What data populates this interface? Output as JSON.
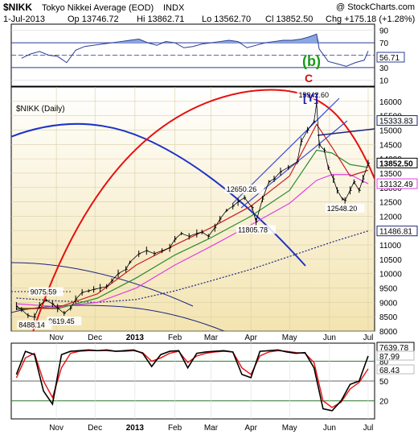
{
  "header": {
    "symbol": "$NIKK",
    "name": "Tokyo Nikkei Average (EOD)",
    "exchange": "INDX",
    "source": "@ StockCharts.com",
    "date": "1-Jul-2013",
    "open": "Op 13746.72",
    "high": "Hi 13862.71",
    "low": "Lo 13562.70",
    "close": "Cl 13852.50",
    "change": "Chg +175.18 (+1.28%)"
  },
  "chart_data": [
    {
      "type": "line",
      "panel": "rsi",
      "ylim": [
        0,
        100
      ],
      "y_ticks": [
        10,
        30,
        50,
        70,
        90
      ],
      "levels": [
        30,
        70
      ],
      "last_value": "56.71",
      "colors": {
        "line": "#2b3c9a",
        "fill": "#8aa8e0"
      },
      "x": [
        "2012-10-05",
        "2012-10-12",
        "2012-10-19",
        "2012-10-26",
        "2012-11-02",
        "2012-11-09",
        "2012-11-16",
        "2012-11-23",
        "2012-11-30",
        "2012-12-07",
        "2012-12-14",
        "2012-12-21",
        "2012-12-28",
        "2013-01-04",
        "2013-01-11",
        "2013-01-18",
        "2013-01-25",
        "2013-02-01",
        "2013-02-08",
        "2013-02-15",
        "2013-02-22",
        "2013-03-01",
        "2013-03-08",
        "2013-03-15",
        "2013-03-22",
        "2013-03-29",
        "2013-04-05",
        "2013-04-12",
        "2013-04-19",
        "2013-04-26",
        "2013-05-03",
        "2013-05-10",
        "2013-05-17",
        "2013-05-22",
        "2013-05-24",
        "2013-05-31",
        "2013-06-07",
        "2013-06-14",
        "2013-06-21",
        "2013-06-28",
        "2013-07-01"
      ],
      "values": [
        45,
        52,
        56,
        50,
        48,
        38,
        58,
        64,
        66,
        68,
        70,
        72,
        74,
        76,
        70,
        66,
        72,
        70,
        62,
        64,
        68,
        70,
        72,
        74,
        72,
        62,
        66,
        70,
        72,
        74,
        74,
        76,
        80,
        84,
        60,
        40,
        36,
        32,
        38,
        42,
        56.71
      ]
    },
    {
      "type": "line",
      "panel": "price",
      "title": "$NIKK (Daily)",
      "ylim": [
        8000,
        16500
      ],
      "y_ticks": [
        8000,
        8500,
        9000,
        9500,
        10000,
        10500,
        11000,
        11500,
        12000,
        12500,
        13000,
        13500,
        14000,
        14500,
        15000,
        15500,
        16000
      ],
      "x_ticks": [
        "Nov",
        "Dec",
        "2013",
        "Feb",
        "Mar",
        "Apr",
        "May",
        "Jun",
        "Jul"
      ],
      "series": [
        {
          "key": "price",
          "color": "#000000",
          "x": [
            "2012-10-01",
            "2012-10-05",
            "2012-10-10",
            "2012-10-15",
            "2012-10-19",
            "2012-10-24",
            "2012-10-29",
            "2012-11-02",
            "2012-11-07",
            "2012-11-12",
            "2012-11-16",
            "2012-11-21",
            "2012-11-26",
            "2012-11-30",
            "2012-12-05",
            "2012-12-10",
            "2012-12-14",
            "2012-12-19",
            "2012-12-25",
            "2012-12-28",
            "2013-01-04",
            "2013-01-10",
            "2013-01-16",
            "2013-01-22",
            "2013-01-28",
            "2013-02-01",
            "2013-02-06",
            "2013-02-12",
            "2013-02-18",
            "2013-02-22",
            "2013-02-27",
            "2013-03-04",
            "2013-03-08",
            "2013-03-13",
            "2013-03-18",
            "2013-03-22",
            "2013-03-27",
            "2013-04-02",
            "2013-04-05",
            "2013-04-10",
            "2013-04-15",
            "2013-04-19",
            "2013-04-24",
            "2013-04-30",
            "2013-05-07",
            "2013-05-10",
            "2013-05-15",
            "2013-05-20",
            "2013-05-22",
            "2013-05-24",
            "2013-05-28",
            "2013-05-31",
            "2013-06-04",
            "2013-06-07",
            "2013-06-11",
            "2013-06-13",
            "2013-06-17",
            "2013-06-20",
            "2013-06-24",
            "2013-06-27",
            "2013-07-01"
          ],
          "values": [
            8870,
            8750,
            8540,
            8488.14,
            8900,
            9075.59,
            8950,
            8800,
            8619.45,
            8800,
            9100,
            9350,
            9400,
            9450,
            9500,
            9550,
            9750,
            10000,
            10150,
            10395,
            10690,
            10800,
            10700,
            10800,
            10900,
            11200,
            11400,
            11300,
            11400,
            11450,
            11300,
            11600,
            11900,
            12200,
            12350,
            12500,
            12650.26,
            12300,
            11805.78,
            12600,
            13200,
            13300,
            13550,
            13700,
            13900,
            14600,
            15000,
            15300,
            15942.6,
            14500,
            14300,
            13700,
            13300,
            12900,
            12600,
            12548.2,
            12900,
            13200,
            12900,
            13300,
            13852.5
          ]
        },
        {
          "key": "ema_fast",
          "color": "#cc2020",
          "x": [
            "2012-10-01",
            "2012-11-02",
            "2012-12-03",
            "2013-01-02",
            "2013-02-01",
            "2013-03-01",
            "2013-04-01",
            "2013-05-01",
            "2013-05-22",
            "2013-06-03",
            "2013-06-17",
            "2013-07-01"
          ],
          "values": [
            8750,
            8820,
            9300,
            10300,
            11000,
            11600,
            12350,
            13400,
            15200,
            14400,
            13400,
            13600
          ]
        },
        {
          "key": "ema_mid",
          "color": "#2e8a2e",
          "x": [
            "2012-10-01",
            "2012-11-02",
            "2012-12-03",
            "2013-01-02",
            "2013-02-01",
            "2013-03-01",
            "2013-04-01",
            "2013-05-01",
            "2013-05-22",
            "2013-06-03",
            "2013-06-17",
            "2013-07-01"
          ],
          "values": [
            8800,
            8780,
            9150,
            9850,
            10650,
            11250,
            12000,
            12900,
            14300,
            14200,
            13800,
            13700
          ]
        },
        {
          "key": "sma_50",
          "color": "#e040e0",
          "x": [
            "2012-10-01",
            "2012-11-02",
            "2012-12-03",
            "2013-01-02",
            "2013-02-01",
            "2013-03-01",
            "2013-04-01",
            "2013-05-01",
            "2013-05-22",
            "2013-06-03",
            "2013-06-17",
            "2013-07-01"
          ],
          "values": [
            8950,
            8850,
            9000,
            9500,
            10300,
            10950,
            11700,
            12450,
            13250,
            13450,
            13450,
            13132.49
          ]
        },
        {
          "key": "sma_200",
          "color": "#1a237e",
          "dashed": true,
          "x": [
            "2012-10-01",
            "2012-11-02",
            "2012-12-03",
            "2013-01-02",
            "2013-02-01",
            "2013-03-01",
            "2013-04-01",
            "2013-05-01",
            "2013-06-03",
            "2013-07-01"
          ],
          "values": [
            9150,
            9050,
            9000,
            9100,
            9400,
            9750,
            10150,
            10600,
            11100,
            11486.81
          ]
        }
      ],
      "right_labels": [
        {
          "text": "15333.83",
          "value": 15333.83,
          "color": "#1a237e"
        },
        {
          "text": "13852.50",
          "value": 13852.5,
          "color": "#000000",
          "bold": true
        },
        {
          "text": "13132.49",
          "value": 13132.49,
          "color": "#e040e0"
        },
        {
          "text": "11486.81",
          "value": 11486.81,
          "color": "#1a237e"
        }
      ],
      "annotations": [
        {
          "text": "15942.60",
          "x": "2013-05-22",
          "value": 15942.6,
          "position": "above"
        },
        {
          "text": "12650.26",
          "x": "2013-03-27",
          "value": 12650.26,
          "position": "above"
        },
        {
          "text": "11805.78",
          "x": "2013-04-05",
          "value": 11805.78,
          "position": "below"
        },
        {
          "text": "12548.20",
          "x": "2013-06-13",
          "value": 12548.2,
          "position": "below"
        },
        {
          "text": "9075.59",
          "x": "2012-10-24",
          "value": 9075.59,
          "position": "above"
        },
        {
          "text": "8619.45",
          "x": "2012-11-07",
          "value": 8619.45,
          "position": "below"
        },
        {
          "text": "8488.14",
          "x": "2012-10-15",
          "value": 8488.14,
          "position": "below"
        }
      ],
      "wave_labels": [
        {
          "text": "(b)",
          "color": "#1a9a1a"
        },
        {
          "text": "C",
          "color": "#d01010"
        },
        {
          "text": "[Y]",
          "color": "#1a1aa0"
        }
      ],
      "colors": {
        "blue_arc": "#1f33c8",
        "red_arc": "#e81010",
        "channel": "#3b4bd8",
        "background": "#f3e4b0"
      }
    },
    {
      "type": "line",
      "panel": "stochastic",
      "ylim": [
        0,
        100
      ],
      "y_ticks": [
        20,
        50,
        80
      ],
      "levels": [
        20,
        50,
        80
      ],
      "x_ticks": [
        "Nov",
        "Dec",
        "2013",
        "Feb",
        "Mar",
        "Apr",
        "May",
        "Jun",
        "Jul"
      ],
      "right_labels": [
        {
          "text": "7639.78",
          "color": "#000000",
          "boxed": true
        },
        {
          "text": "87.99",
          "color": "#000000"
        },
        {
          "text": "68.43",
          "color": "#000000"
        }
      ],
      "series": [
        {
          "key": "k",
          "color": "#000000",
          "x": [
            "2012-10-01",
            "2012-10-08",
            "2012-10-15",
            "2012-10-22",
            "2012-10-29",
            "2012-11-05",
            "2012-11-12",
            "2012-11-19",
            "2012-11-26",
            "2012-12-03",
            "2012-12-10",
            "2012-12-17",
            "2012-12-24",
            "2012-12-31",
            "2013-01-07",
            "2013-01-14",
            "2013-01-21",
            "2013-01-28",
            "2013-02-04",
            "2013-02-11",
            "2013-02-18",
            "2013-02-25",
            "2013-03-04",
            "2013-03-11",
            "2013-03-18",
            "2013-03-25",
            "2013-04-01",
            "2013-04-08",
            "2013-04-15",
            "2013-04-22",
            "2013-04-29",
            "2013-05-06",
            "2013-05-13",
            "2013-05-20",
            "2013-05-27",
            "2013-06-03",
            "2013-06-10",
            "2013-06-17",
            "2013-06-24",
            "2013-07-01"
          ],
          "values": [
            60,
            95,
            90,
            35,
            15,
            90,
            95,
            96,
            97,
            96,
            97,
            95,
            96,
            97,
            92,
            72,
            90,
            95,
            96,
            70,
            92,
            94,
            95,
            96,
            94,
            60,
            55,
            95,
            96,
            97,
            94,
            92,
            93,
            70,
            8,
            5,
            20,
            45,
            50,
            87.99
          ]
        },
        {
          "key": "d",
          "color": "#e81010",
          "x": [
            "2012-10-01",
            "2012-10-08",
            "2012-10-15",
            "2012-10-22",
            "2012-10-29",
            "2012-11-05",
            "2012-11-12",
            "2012-11-19",
            "2012-11-26",
            "2012-12-03",
            "2012-12-10",
            "2012-12-17",
            "2012-12-24",
            "2012-12-31",
            "2013-01-07",
            "2013-01-14",
            "2013-01-21",
            "2013-01-28",
            "2013-02-04",
            "2013-02-11",
            "2013-02-18",
            "2013-02-25",
            "2013-03-04",
            "2013-03-11",
            "2013-03-18",
            "2013-03-25",
            "2013-04-01",
            "2013-04-08",
            "2013-04-15",
            "2013-04-22",
            "2013-04-29",
            "2013-05-06",
            "2013-05-13",
            "2013-05-20",
            "2013-05-27",
            "2013-06-03",
            "2013-06-10",
            "2013-06-17",
            "2013-06-24",
            "2013-07-01"
          ],
          "values": [
            55,
            85,
            92,
            50,
            25,
            70,
            92,
            95,
            96,
            96,
            96,
            95,
            95,
            96,
            93,
            80,
            85,
            92,
            95,
            78,
            88,
            92,
            94,
            95,
            94,
            70,
            60,
            88,
            94,
            96,
            95,
            93,
            92,
            78,
            20,
            10,
            18,
            38,
            48,
            68.43
          ]
        }
      ]
    }
  ]
}
